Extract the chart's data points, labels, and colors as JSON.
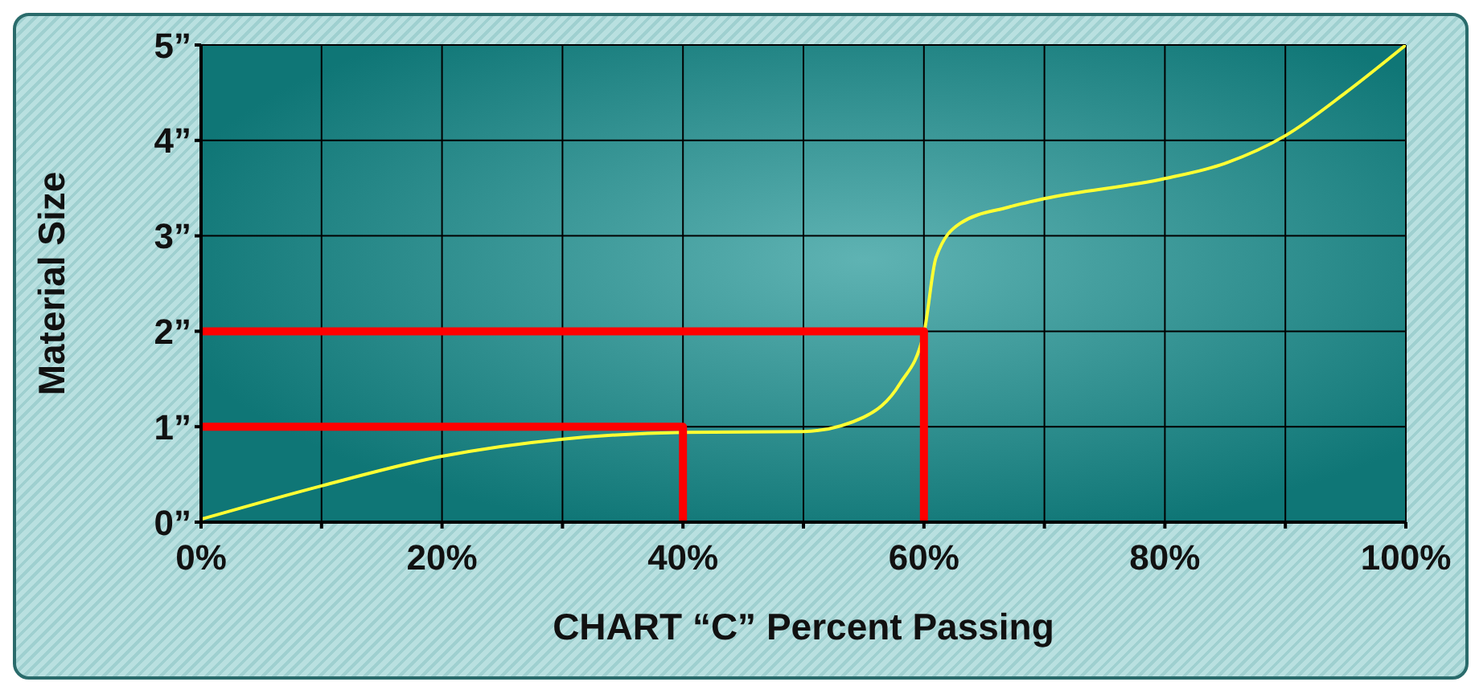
{
  "chart_data": {
    "type": "line",
    "xlabel": "CHART “C” Percent Passing",
    "ylabel": "Material Size",
    "xlim": [
      0,
      100
    ],
    "xticks": [
      {
        "value": 0,
        "label": "0%"
      },
      {
        "value": 10,
        "label": null
      },
      {
        "value": 20,
        "label": "20%"
      },
      {
        "value": 30,
        "label": null
      },
      {
        "value": 40,
        "label": "40%"
      },
      {
        "value": 50,
        "label": null
      },
      {
        "value": 60,
        "label": "60%"
      },
      {
        "value": 70,
        "label": null
      },
      {
        "value": 80,
        "label": "80%"
      },
      {
        "value": 90,
        "label": null
      },
      {
        "value": 100,
        "label": "100%"
      }
    ],
    "ylim": [
      0,
      5
    ],
    "yticks": [
      {
        "value": 0,
        "label": "0”"
      },
      {
        "value": 1,
        "label": "1”"
      },
      {
        "value": 2,
        "label": "2”"
      },
      {
        "value": 3,
        "label": "3”"
      },
      {
        "value": 4,
        "label": "4”"
      },
      {
        "value": 5,
        "label": "5”"
      }
    ],
    "grid": true,
    "legend": false,
    "marker": "none",
    "line_style": "solid",
    "series": [
      {
        "color": "#ffff33",
        "x": [
          0,
          10,
          20,
          30,
          40,
          50,
          55,
          58,
          60,
          61,
          63,
          67,
          70,
          80,
          85,
          90,
          95,
          100
        ],
        "values": [
          0.03,
          0.38,
          0.69,
          0.87,
          0.94,
          0.95,
          1.1,
          1.45,
          1.98,
          2.77,
          3.13,
          3.3,
          3.39,
          3.6,
          3.76,
          4.05,
          4.5,
          5
        ]
      },
      {
        "color": "#ff0000",
        "x": [
          0,
          40,
          40
        ],
        "values": [
          1,
          1,
          0
        ]
      },
      {
        "color": "#ff0000",
        "x": [
          0,
          60,
          60
        ],
        "values": [
          2,
          2,
          0
        ]
      }
    ]
  }
}
